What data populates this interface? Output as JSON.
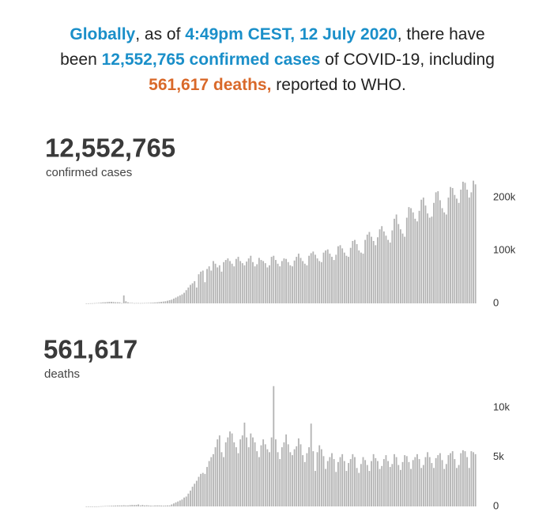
{
  "headline": {
    "segments": [
      {
        "text": "Globally",
        "color": "#1a8fc9",
        "bold": true
      },
      {
        "text": ", as of ",
        "color": "#222222",
        "bold": false
      },
      {
        "text": "4:49pm CEST, 12 July 2020",
        "color": "#1a8fc9",
        "bold": true
      },
      {
        "text": ", there have been ",
        "color": "#222222",
        "bold": false
      },
      {
        "text": "12,552,765 confirmed cases",
        "color": "#1a8fc9",
        "bold": true
      },
      {
        "text": " of COVID-19, including ",
        "color": "#222222",
        "bold": false
      },
      {
        "text": "561,617 deaths,",
        "color": "#d9692a",
        "bold": true
      },
      {
        "text": " reported to WHO.",
        "color": "#222222",
        "bold": false
      }
    ]
  },
  "chart_data": [
    {
      "type": "bar",
      "title": "12,552,765",
      "subtitle": "confirmed cases",
      "color": "#b4b4b4",
      "ylim": [
        0,
        230
      ],
      "yticks": [
        0,
        {
          "value": 100,
          "label": "100k"
        },
        {
          "value": 200,
          "label": "200k"
        }
      ],
      "values": [
        0.1,
        0.1,
        0.2,
        0.3,
        0.5,
        0.7,
        1,
        1.5,
        2,
        2,
        2.5,
        2.9,
        3,
        2.6,
        2.1,
        2.1,
        2,
        0.5,
        15,
        4,
        2,
        1,
        1,
        0.5,
        0.6,
        0.6,
        0.5,
        0.6,
        0.7,
        0.8,
        1,
        1.2,
        1.5,
        1.8,
        2,
        2.5,
        3,
        3.5,
        4,
        5,
        6,
        7,
        9,
        11,
        13,
        15,
        17,
        20,
        25,
        30,
        35,
        38,
        42,
        30,
        55,
        60,
        62,
        40,
        65,
        70,
        62,
        80,
        75,
        68,
        72,
        60,
        78,
        82,
        85,
        80,
        75,
        70,
        84,
        88,
        80,
        76,
        72,
        79,
        85,
        90,
        78,
        70,
        74,
        86,
        82,
        80,
        76,
        68,
        72,
        88,
        90,
        82,
        75,
        70,
        80,
        85,
        84,
        78,
        72,
        70,
        81,
        88,
        94,
        86,
        80,
        75,
        72,
        90,
        95,
        98,
        92,
        85,
        80,
        78,
        96,
        100,
        102,
        94,
        88,
        82,
        92,
        108,
        110,
        104,
        96,
        90,
        88,
        105,
        118,
        120,
        112,
        100,
        96,
        94,
        120,
        130,
        135,
        126,
        118,
        110,
        125,
        140,
        146,
        136,
        128,
        120,
        115,
        138,
        160,
        168,
        150,
        140,
        132,
        126,
        162,
        182,
        180,
        172,
        160,
        155,
        175,
        196,
        200,
        185,
        170,
        162,
        164,
        190,
        210,
        212,
        195,
        180,
        172,
        168,
        200,
        220,
        218,
        205,
        198,
        190,
        215,
        230,
        228,
        215,
        200,
        210,
        232,
        225
      ]
    },
    {
      "type": "bar",
      "title": "561,617",
      "subtitle": "deaths",
      "color": "#b4b4b4",
      "ylim": [
        0,
        12.5
      ],
      "yticks": [
        0,
        {
          "value": 5,
          "label": "5k"
        },
        {
          "value": 10,
          "label": "10k"
        }
      ],
      "values": [
        0,
        0,
        0,
        0,
        0,
        0,
        0.01,
        0.02,
        0.03,
        0.04,
        0.05,
        0.06,
        0.07,
        0.08,
        0.09,
        0.1,
        0.1,
        0.1,
        0.12,
        0.1,
        0.1,
        0.13,
        0.15,
        0.14,
        0.15,
        0.2,
        0.1,
        0.15,
        0.1,
        0.12,
        0.1,
        0.08,
        0.07,
        0.1,
        0.1,
        0.1,
        0.09,
        0.08,
        0.09,
        0.1,
        0.1,
        0.2,
        0.3,
        0.4,
        0.5,
        0.6,
        0.7,
        0.9,
        1.0,
        1.3,
        1.6,
        2.0,
        2.3,
        2.6,
        3.0,
        3.3,
        3.4,
        3.3,
        4.0,
        4.6,
        5.0,
        5.3,
        6.0,
        6.8,
        7.2,
        5.5,
        5.0,
        6.5,
        7.0,
        7.6,
        7.4,
        6.5,
        6.0,
        5.4,
        6.8,
        7.2,
        8.5,
        7.0,
        6.0,
        7.4,
        7.0,
        6.5,
        5.6,
        5.0,
        6.2,
        6.8,
        6.3,
        5.8,
        5.5,
        7.0,
        12.2,
        6.8,
        5.5,
        4.8,
        6.0,
        6.5,
        7.3,
        6.3,
        5.5,
        5.2,
        5.8,
        6.1,
        6.9,
        6.3,
        5.2,
        4.5,
        5.4,
        6.0,
        8.4,
        5.6,
        3.6,
        5.5,
        6.2,
        5.8,
        5.1,
        3.8,
        4.6,
        5.0,
        5.4,
        4.8,
        3.5,
        4.5,
        5.0,
        5.3,
        4.6,
        3.6,
        4.4,
        4.8,
        5.3,
        5.0,
        3.9,
        3.4,
        4.3,
        5.0,
        4.7,
        4.2,
        3.6,
        4.6,
        5.3,
        4.9,
        4.6,
        3.8,
        4.1,
        4.8,
        5.2,
        4.6,
        4.0,
        4.3,
        5.3,
        5.0,
        4.2,
        3.7,
        4.5,
        5.2,
        5.1,
        4.5,
        3.8,
        4.7,
        5.0,
        5.3,
        4.8,
        3.9,
        4.2,
        5.0,
        5.5,
        5.0,
        4.4,
        3.9,
        4.9,
        5.2,
        5.4,
        4.7,
        3.8,
        4.3,
        5.2,
        5.4,
        5.6,
        4.8,
        3.9,
        4.2,
        5.4,
        5.7,
        5.6,
        5.0,
        3.9,
        5.6,
        5.5,
        5.3
      ]
    }
  ]
}
